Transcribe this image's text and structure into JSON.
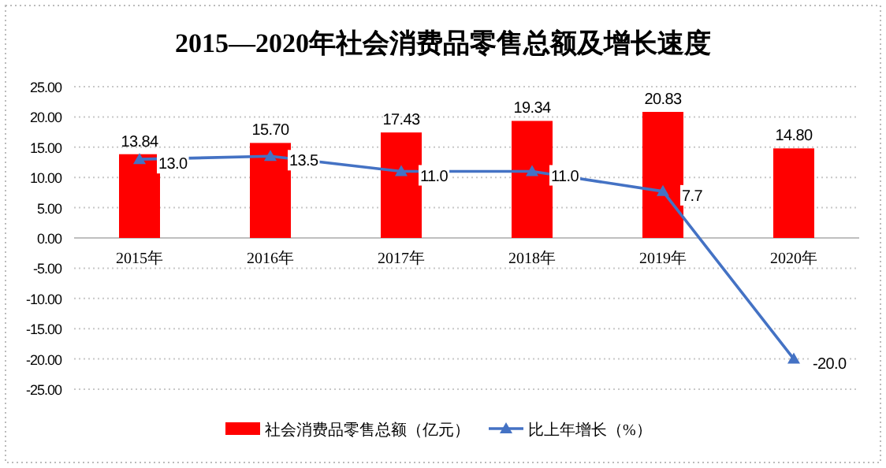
{
  "chart_data": {
    "type": "bar",
    "title": "2015—2020年社会消费品零售总额及增长速度",
    "categories": [
      "2015年",
      "2016年",
      "2017年",
      "2018年",
      "2019年",
      "2020年"
    ],
    "series": [
      {
        "name": "社会消费品零售总额（亿元）",
        "color": "#ff0000",
        "values": [
          13.84,
          15.7,
          17.43,
          19.34,
          20.83,
          14.8
        ],
        "value_labels": [
          "13.84",
          "15.70",
          "17.43",
          "19.34",
          "20.83",
          "14.80"
        ]
      },
      {
        "name": "比上年增长（%）",
        "type": "line",
        "color": "#4472c4",
        "marker": "triangle",
        "values": [
          13.0,
          13.5,
          11.0,
          11.0,
          7.7,
          -20.0
        ],
        "value_labels": [
          "13.0",
          "13.5",
          "11.0",
          "11.0",
          "7.7",
          "-20.0"
        ]
      }
    ],
    "ylim": [
      -25,
      25
    ],
    "yticks": [
      {
        "value": -25,
        "label": "-25.00"
      },
      {
        "value": -20,
        "label": "-20.00"
      },
      {
        "value": -15,
        "label": "-15.00"
      },
      {
        "value": -10,
        "label": "-10.00"
      },
      {
        "value": -5,
        "label": "-5.00"
      },
      {
        "value": 0,
        "label": "0.00"
      },
      {
        "value": 5,
        "label": "5.00"
      },
      {
        "value": 10,
        "label": "10.00"
      },
      {
        "value": 15,
        "label": "15.00"
      },
      {
        "value": 20,
        "label": "20.00"
      },
      {
        "value": 25,
        "label": "25.00"
      }
    ],
    "grid": "y",
    "legend": "bottom"
  }
}
